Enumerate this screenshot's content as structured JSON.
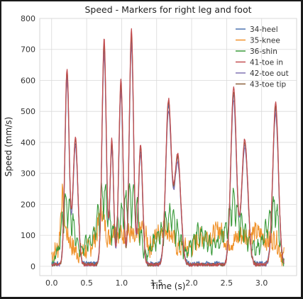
{
  "chart_data": {
    "type": "line",
    "title": "Speed - Markers for right leg and foot",
    "xlabel": "Time (s)",
    "ylabel": "Speed (mm/s)",
    "xlim": [
      -0.17,
      3.5
    ],
    "ylim": [
      -30,
      800
    ],
    "xticks": [
      0.0,
      0.5,
      1.0,
      1.5,
      2.0,
      2.5,
      3.0
    ],
    "xtick_labels": [
      "0.0",
      "0.5",
      "1.0",
      "1.5",
      "2.0",
      "2.5",
      "3.0"
    ],
    "yticks": [
      0,
      100,
      200,
      300,
      400,
      500,
      600,
      700,
      800
    ],
    "ytick_labels": [
      "0",
      "100",
      "200",
      "300",
      "400",
      "500",
      "600",
      "700",
      "800"
    ],
    "grid": true,
    "legend_position": "top-right",
    "peaks": [
      {
        "t": 0.22,
        "v": 635,
        "w": 0.03
      },
      {
        "t": 0.34,
        "v": 410,
        "w": 0.035
      },
      {
        "t": 0.75,
        "v": 730,
        "w": 0.03
      },
      {
        "t": 0.86,
        "v": 405,
        "w": 0.025
      },
      {
        "t": 0.99,
        "v": 595,
        "w": 0.03
      },
      {
        "t": 1.14,
        "v": 760,
        "w": 0.03
      },
      {
        "t": 1.27,
        "v": 385,
        "w": 0.03
      },
      {
        "t": 1.67,
        "v": 530,
        "w": 0.04
      },
      {
        "t": 1.8,
        "v": 355,
        "w": 0.045
      },
      {
        "t": 2.6,
        "v": 570,
        "w": 0.04
      },
      {
        "t": 2.76,
        "v": 405,
        "w": 0.045
      },
      {
        "t": 3.2,
        "v": 525,
        "w": 0.04
      }
    ],
    "series": [
      {
        "name": "34-heel",
        "color": "#4c72b0",
        "scale": 0.95,
        "offset": 10
      },
      {
        "name": "35-knee",
        "color": "#f0922b",
        "scale": 0.0,
        "offset": 0
      },
      {
        "name": "36-shin",
        "color": "#3a9a3a",
        "scale": 0.0,
        "offset": 0
      },
      {
        "name": "41-toe in",
        "color": "#c44e52",
        "scale": 1.0,
        "offset": 5
      },
      {
        "name": "42-toe out",
        "color": "#8172b2",
        "scale": 0.93,
        "offset": 5
      },
      {
        "name": "43-toe tip",
        "color": "#8c613c",
        "scale": 0.98,
        "offset": 5
      }
    ],
    "knee_profile": [
      [
        0.0,
        40
      ],
      [
        0.1,
        60
      ],
      [
        0.15,
        240
      ],
      [
        0.2,
        120
      ],
      [
        0.3,
        60
      ],
      [
        0.4,
        40
      ],
      [
        0.55,
        60
      ],
      [
        0.65,
        110
      ],
      [
        0.7,
        200
      ],
      [
        0.8,
        90
      ],
      [
        0.9,
        120
      ],
      [
        1.0,
        100
      ],
      [
        1.1,
        110
      ],
      [
        1.2,
        80
      ],
      [
        1.3,
        130
      ],
      [
        1.4,
        60
      ],
      [
        1.5,
        100
      ],
      [
        1.6,
        130
      ],
      [
        1.7,
        110
      ],
      [
        1.8,
        60
      ],
      [
        1.9,
        60
      ],
      [
        2.0,
        60
      ],
      [
        2.1,
        90
      ],
      [
        2.2,
        100
      ],
      [
        2.3,
        100
      ],
      [
        2.4,
        120
      ],
      [
        2.5,
        80
      ],
      [
        2.6,
        80
      ],
      [
        2.7,
        100
      ],
      [
        2.8,
        100
      ],
      [
        2.9,
        110
      ],
      [
        3.0,
        100
      ],
      [
        3.1,
        80
      ],
      [
        3.2,
        90
      ],
      [
        3.3,
        30
      ]
    ],
    "shin_profile": [
      [
        0.0,
        5
      ],
      [
        0.1,
        60
      ],
      [
        0.18,
        200
      ],
      [
        0.22,
        210
      ],
      [
        0.3,
        150
      ],
      [
        0.4,
        60
      ],
      [
        0.5,
        80
      ],
      [
        0.6,
        100
      ],
      [
        0.68,
        190
      ],
      [
        0.75,
        260
      ],
      [
        0.82,
        160
      ],
      [
        0.9,
        110
      ],
      [
        1.0,
        180
      ],
      [
        1.1,
        230
      ],
      [
        1.2,
        220
      ],
      [
        1.28,
        100
      ],
      [
        1.35,
        30
      ],
      [
        1.45,
        80
      ],
      [
        1.55,
        110
      ],
      [
        1.65,
        160
      ],
      [
        1.72,
        180
      ],
      [
        1.8,
        120
      ],
      [
        1.9,
        40
      ],
      [
        2.0,
        80
      ],
      [
        2.1,
        120
      ],
      [
        2.2,
        90
      ],
      [
        2.3,
        70
      ],
      [
        2.4,
        80
      ],
      [
        2.5,
        140
      ],
      [
        2.6,
        220
      ],
      [
        2.7,
        150
      ],
      [
        2.8,
        90
      ],
      [
        2.9,
        60
      ],
      [
        3.0,
        80
      ],
      [
        3.1,
        150
      ],
      [
        3.2,
        210
      ],
      [
        3.3,
        20
      ]
    ]
  }
}
